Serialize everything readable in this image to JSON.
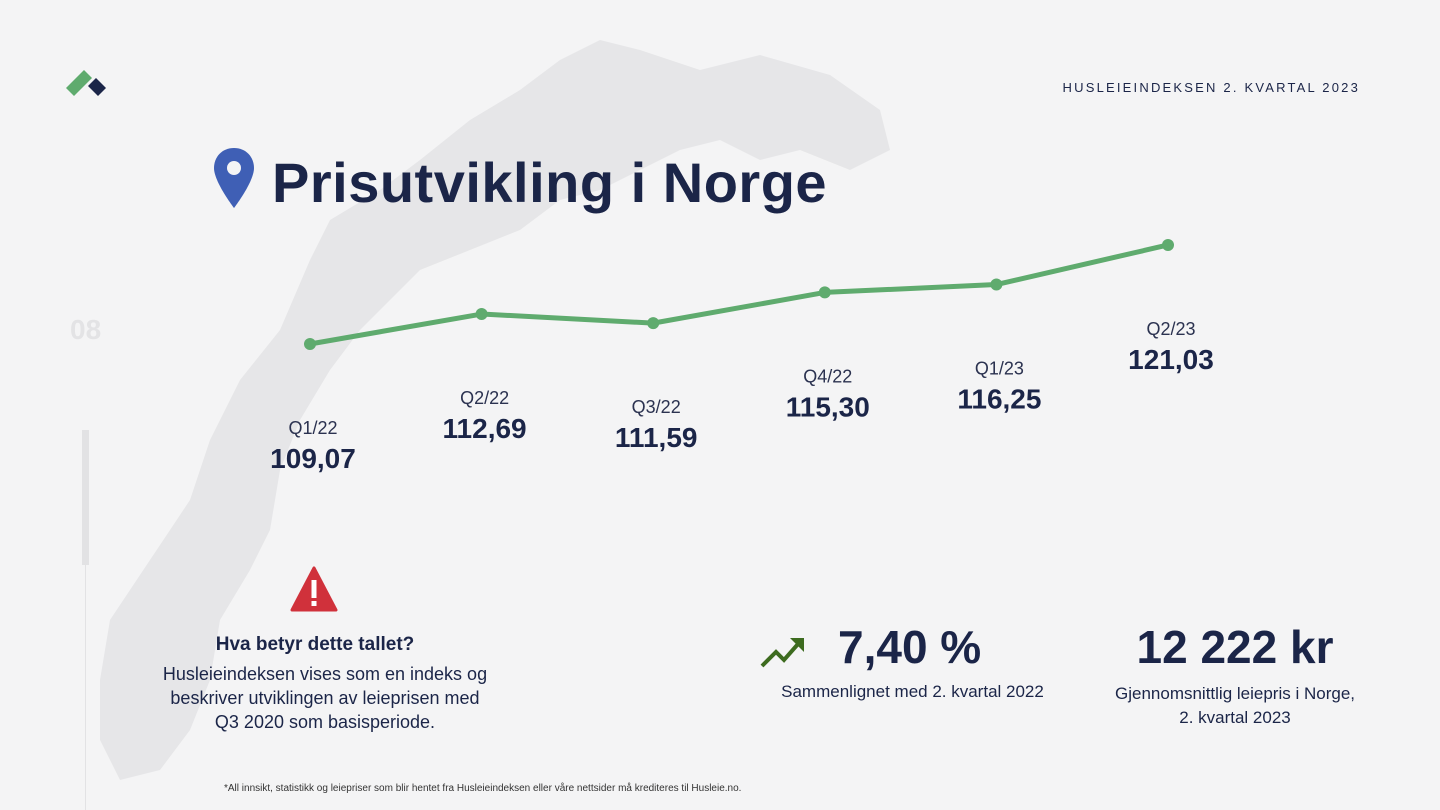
{
  "header": {
    "report_title": "HUSLEIEINDEKSEN 2. KVARTAL 2023"
  },
  "page": {
    "title": "Prisutvikling i Norge",
    "page_number": "08"
  },
  "colors": {
    "line": "#5fab6e",
    "navy": "#1b2548",
    "pin": "#3f5fb5",
    "warning": "#d0313b",
    "trend": "#3d6b1f"
  },
  "chart_data": {
    "type": "line",
    "title": "Prisutvikling i Norge",
    "categories": [
      "Q1/22",
      "Q2/22",
      "Q3/22",
      "Q4/22",
      "Q1/23",
      "Q2/23"
    ],
    "values": [
      109.07,
      112.69,
      111.59,
      115.3,
      116.25,
      121.03
    ],
    "value_labels": [
      "109,07",
      "112,69",
      "111,59",
      "115,30",
      "116,25",
      "121,03"
    ],
    "xlabel": "",
    "ylabel": "",
    "grid": false
  },
  "info": {
    "heading": "Hva betyr dette tallet?",
    "lines": [
      "Husleieindeksen vises som en indeks og",
      "beskriver utviklingen av leieprisen med",
      "Q3 2020 som basisperiode."
    ]
  },
  "stats": {
    "change_value": "7,40 %",
    "change_caption": "Sammenlignet med 2. kvartal 2022",
    "avg_value": "12 222 kr",
    "avg_caption_1": "Gjennomsnittlig leiepris i Norge,",
    "avg_caption_2": "2. kvartal 2023"
  },
  "footnote": "*All innsikt, statistikk og leiepriser som blir hentet fra Husleieindeksen eller våre nettsider må krediteres til Husleie.no."
}
